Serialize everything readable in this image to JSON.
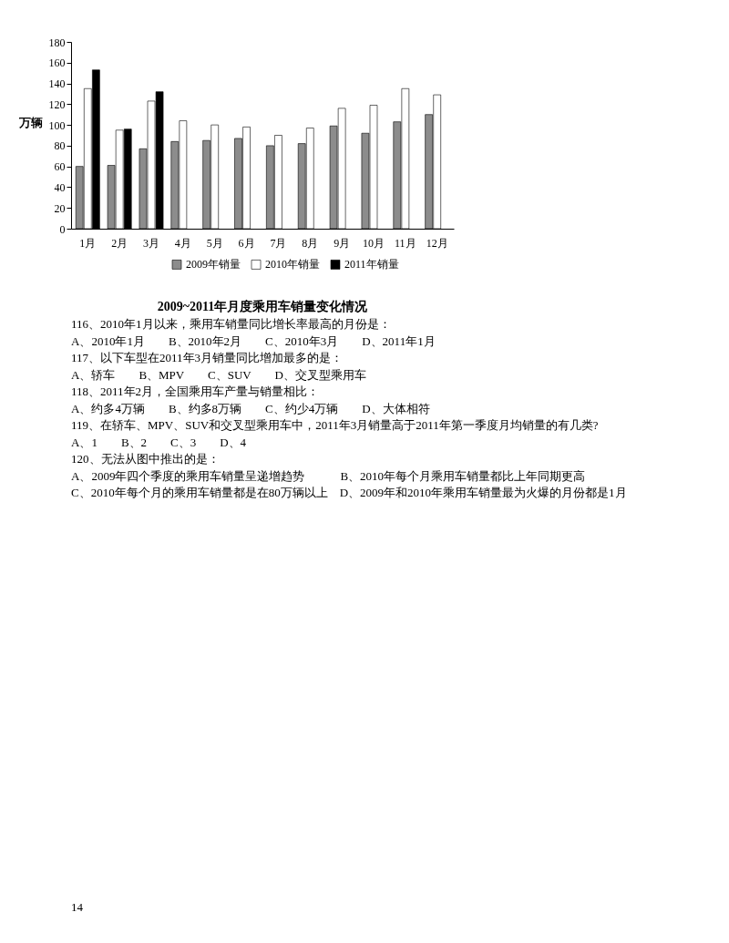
{
  "chart_data": {
    "type": "bar",
    "title": "2009~2011年月度乘用车销量变化情况",
    "ylabel": "万辆",
    "categories": [
      "1月",
      "2月",
      "3月",
      "4月",
      "5月",
      "6月",
      "7月",
      "8月",
      "9月",
      "10月",
      "11月",
      "12月"
    ],
    "series": [
      {
        "name": "2009年销量",
        "color": "#8c8c8c",
        "values": [
          60,
          61,
          77,
          84,
          85,
          87,
          80,
          82,
          99,
          92,
          103,
          110
        ]
      },
      {
        "name": "2010年销量",
        "color": "#ffffff",
        "values": [
          135,
          95,
          123,
          104,
          100,
          98,
          90,
          97,
          116,
          119,
          135,
          129
        ]
      },
      {
        "name": "2011年销量",
        "color": "#000000",
        "values": [
          153,
          96,
          132,
          null,
          null,
          null,
          null,
          null,
          null,
          null,
          null,
          null
        ]
      }
    ],
    "ylim": [
      0,
      180
    ],
    "yticks": [
      0,
      20,
      40,
      60,
      80,
      100,
      120,
      140,
      160,
      180
    ],
    "grid": false,
    "legend": "bottom",
    "annotations": [
      "116、2010年1月以来，乘用车销量同比增长率最高的月份是：",
      "A、2010年1月　　B、2010年2月　　C、2010年3月　　D、2011年1月",
      "117、以下车型在2011年3月销量同比增加最多的是：",
      "A、轿车　　B、MPV　　C、SUV　　D、交叉型乘用车",
      "118、2011年2月，全国乘用车产量与销量相比：",
      "A、约多4万辆　　B、约多8万辆　　C、约少4万辆　　D、大体相符",
      "119、在轿车、MPV、SUV和交叉型乘用车中，2011年3月销量高于2011年第一季度月均销量的有几类?",
      "A、1　　B、2　　C、3　　D、4",
      "120、无法从图中推出的是：",
      "A、2009年四个季度的乘用车销量呈递增趋势　　　B、2010年每个月乘用车销量都比上年同期更高",
      "C、2010年每个月的乘用车销量都是在80万辆以上　D、2009年和2010年乘用车销量最为火爆的月份都是1月",
      "14"
    ]
  }
}
